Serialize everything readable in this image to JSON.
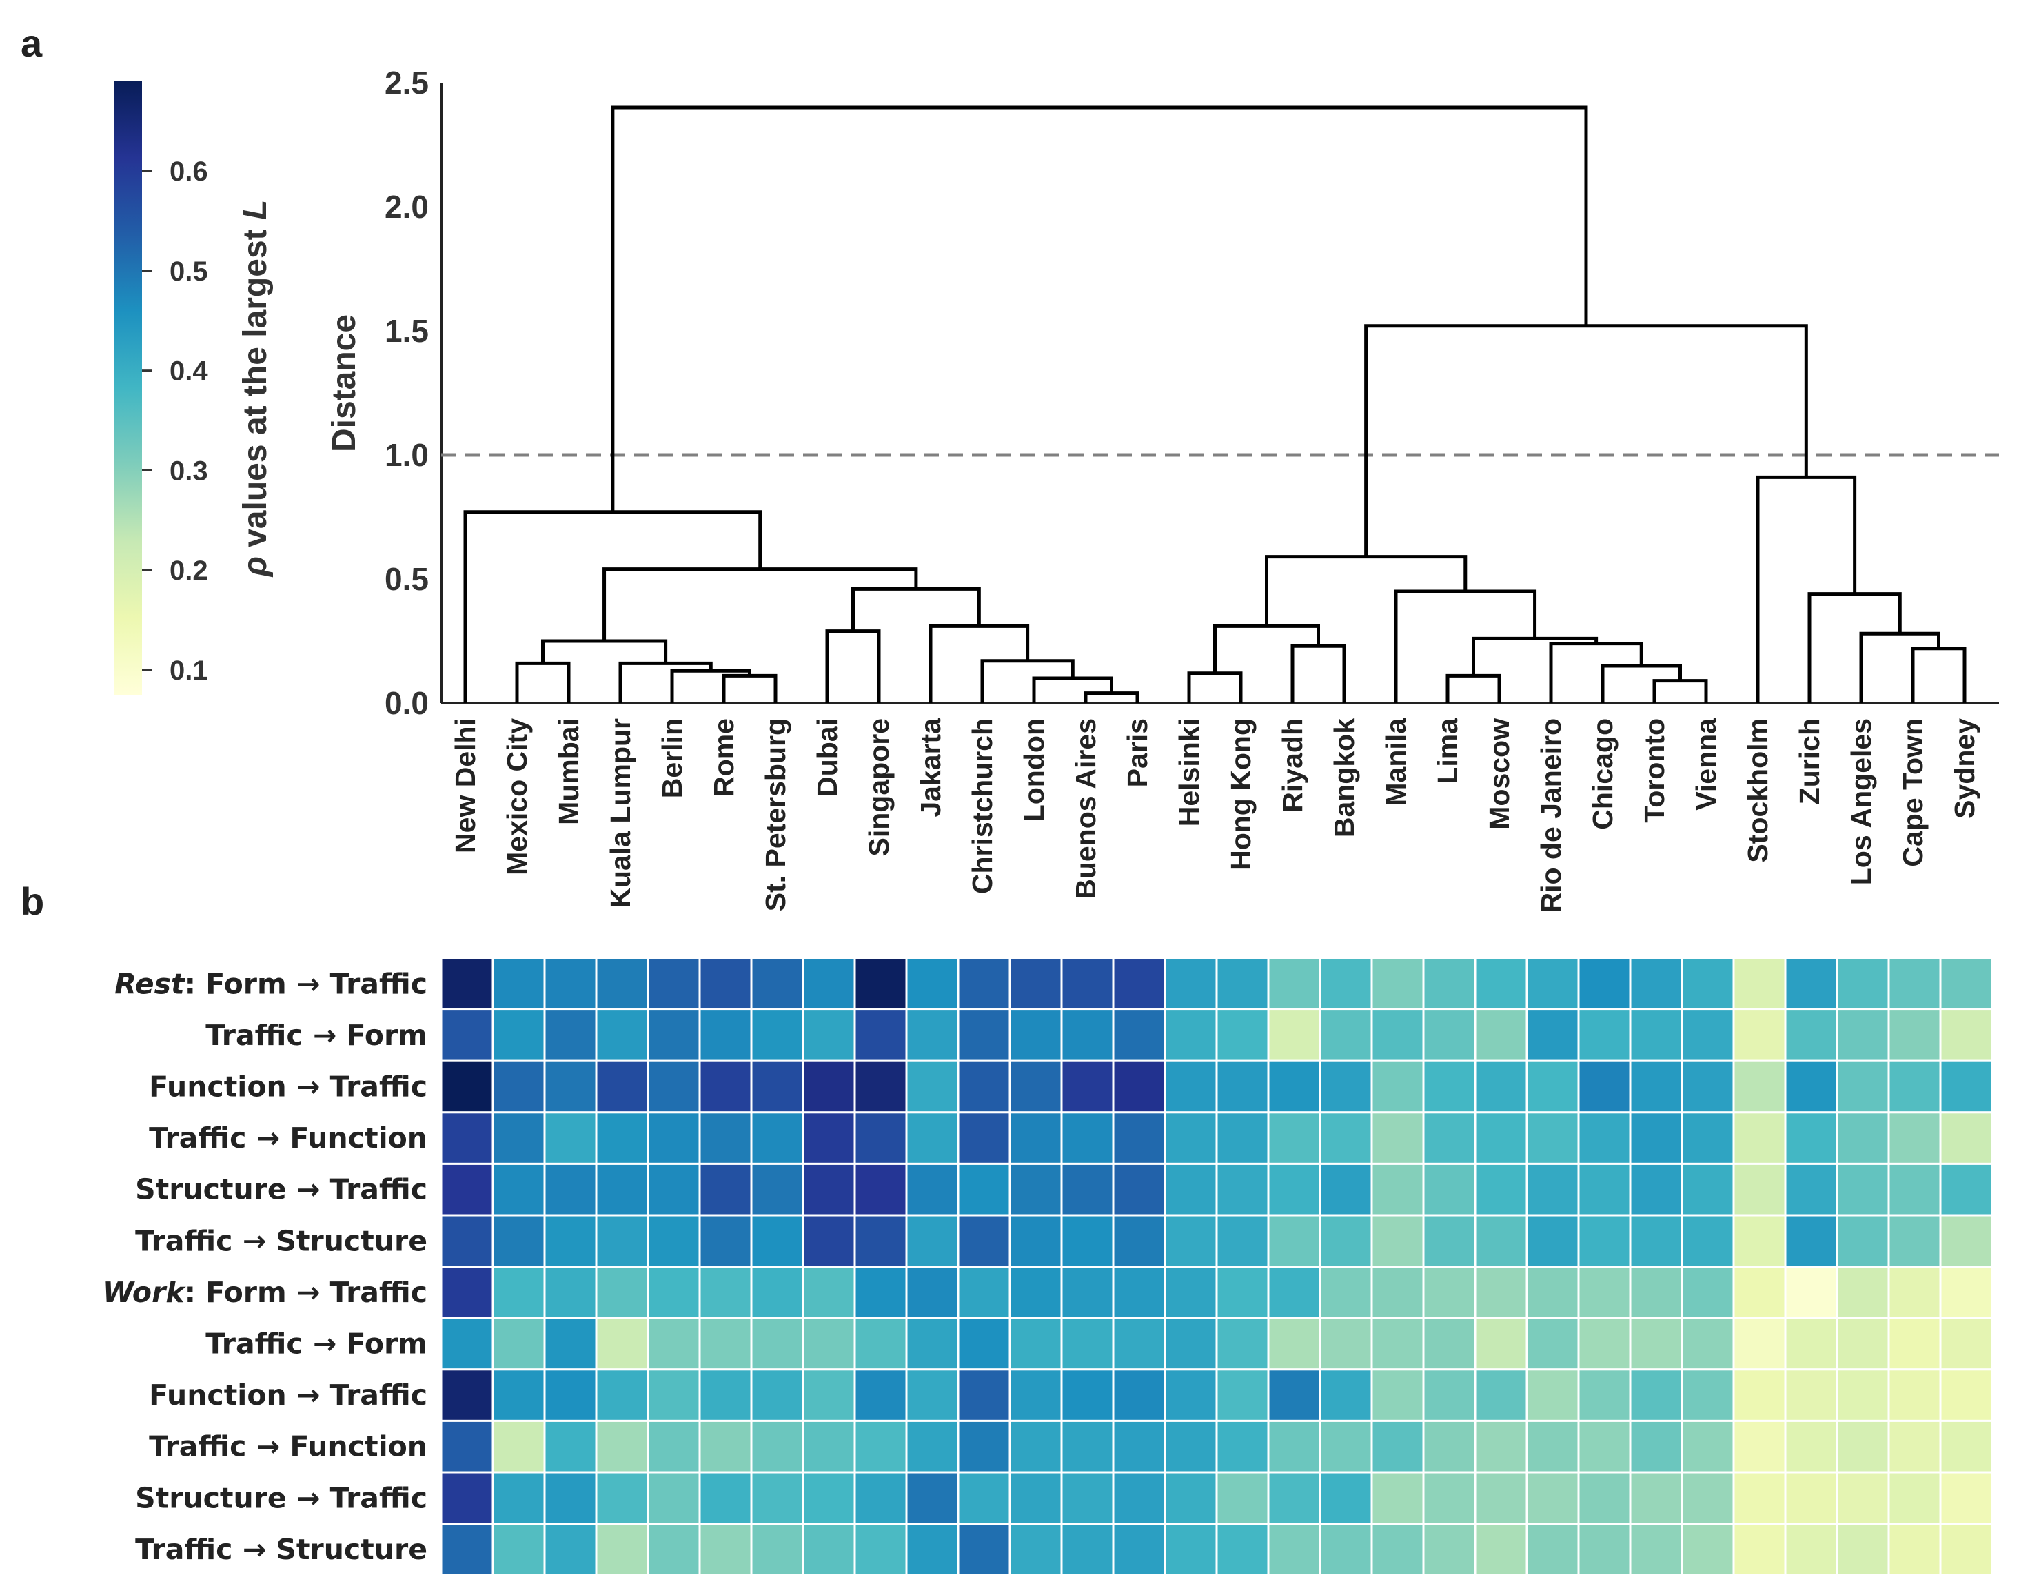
{
  "panel_labels": {
    "a": "a",
    "b": "b"
  },
  "colors": {
    "line": "#000000",
    "threshold": "#808080",
    "axis": "#222222",
    "scale": [
      "#ffffd9",
      "#edf8b1",
      "#c7e9b4",
      "#7fcdbb",
      "#41b6c4",
      "#1d91c0",
      "#225ea8",
      "#253494",
      "#081d58"
    ]
  },
  "colorbar": {
    "label_prefix": "ρ",
    "label_text": " values at the largest ",
    "label_var": "L",
    "ticks": [
      "0.1",
      "0.2",
      "0.3",
      "0.4",
      "0.5",
      "0.6"
    ],
    "tick_values": [
      0.1,
      0.2,
      0.3,
      0.4,
      0.5,
      0.6
    ],
    "range": [
      0.075,
      0.69
    ]
  },
  "chart_data": [
    {
      "type": "dendrogram",
      "ylabel": "Distance",
      "ylim": [
        0,
        2.5
      ],
      "yticks": [
        "0.0",
        "0.5",
        "1.0",
        "1.5",
        "2.0",
        "2.5"
      ],
      "threshold": 1.0,
      "leaves": [
        "New Delhi",
        "Mexico City",
        "Mumbai",
        "Kuala Lumpur",
        "Berlin",
        "Rome",
        "St. Petersburg",
        "Dubai",
        "Singapore",
        "Jakarta",
        "Christchurch",
        "London",
        "Buenos Aires",
        "Paris",
        "Helsinki",
        "Hong Kong",
        "Riyadh",
        "Bangkok",
        "Manila",
        "Lima",
        "Moscow",
        "Rio de Janeiro",
        "Chicago",
        "Toronto",
        "Vienna",
        "Stockholm",
        "Zurich",
        "Los Angeles",
        "Cape Town",
        "Sydney"
      ],
      "merges": [
        {
          "a": "L12",
          "b": "L13",
          "h": 0.04
        },
        {
          "a": "L23",
          "b": "L24",
          "h": 0.09
        },
        {
          "a": "L5",
          "b": "L6",
          "h": 0.11
        },
        {
          "a": "L19",
          "b": "L20",
          "h": 0.11
        },
        {
          "a": "L14",
          "b": "L15",
          "h": 0.12
        },
        {
          "a": "L11",
          "b": "N0",
          "h": 0.1
        },
        {
          "a": "L4",
          "b": "N2",
          "h": 0.13
        },
        {
          "a": "L22",
          "b": "N1",
          "h": 0.15
        },
        {
          "a": "L1",
          "b": "L2",
          "h": 0.16
        },
        {
          "a": "L3",
          "b": "N6",
          "h": 0.16
        },
        {
          "a": "L10",
          "b": "N5",
          "h": 0.17
        },
        {
          "a": "L28",
          "b": "L29",
          "h": 0.22
        },
        {
          "a": "L16",
          "b": "L17",
          "h": 0.23
        },
        {
          "a": "L21",
          "b": "N7",
          "h": 0.24
        },
        {
          "a": "N8",
          "b": "N9",
          "h": 0.25
        },
        {
          "a": "L27",
          "b": "N11",
          "h": 0.28
        },
        {
          "a": "L7",
          "b": "L8",
          "h": 0.29
        },
        {
          "a": "L9",
          "b": "N10",
          "h": 0.31
        },
        {
          "a": "N4",
          "b": "N12",
          "h": 0.31
        },
        {
          "a": "N3",
          "b": "N13",
          "h": 0.26
        },
        {
          "a": "L18",
          "b": "N19",
          "h": 0.45
        },
        {
          "a": "L26",
          "b": "N15",
          "h": 0.44
        },
        {
          "a": "N16",
          "b": "N17",
          "h": 0.46
        },
        {
          "a": "N14",
          "b": "N22",
          "h": 0.54
        },
        {
          "a": "N18",
          "b": "N20",
          "h": 0.59
        },
        {
          "a": "L25",
          "b": "N21",
          "h": 0.91
        },
        {
          "a": "L0",
          "b": "N23",
          "h": 0.77
        },
        {
          "a": "N24",
          "b": "N25",
          "h": 1.52
        },
        {
          "a": "N26",
          "b": "N27",
          "h": 2.4
        }
      ]
    },
    {
      "type": "heatmap",
      "vmin": 0.075,
      "vmax": 0.69,
      "columns": [
        "New Delhi",
        "Mexico City",
        "Mumbai",
        "Kuala Lumpur",
        "Berlin",
        "Rome",
        "St. Petersburg",
        "Dubai",
        "Singapore",
        "Jakarta",
        "Christchurch",
        "London",
        "Buenos Aires",
        "Paris",
        "Helsinki",
        "Hong Kong",
        "Riyadh",
        "Bangkok",
        "Manila",
        "Lima",
        "Moscow",
        "Rio de Janeiro",
        "Chicago",
        "Toronto",
        "Vienna",
        "Stockholm",
        "Zurich",
        "Los Angeles",
        "Cape Town",
        "Sydney"
      ],
      "rows": [
        {
          "group": "Rest",
          "sep": ": ",
          "label": "Form → Traffic",
          "values": [
            0.67,
            0.47,
            0.48,
            0.49,
            0.53,
            0.55,
            0.52,
            0.47,
            0.68,
            0.46,
            0.53,
            0.55,
            0.56,
            0.58,
            0.43,
            0.42,
            0.33,
            0.37,
            0.31,
            0.35,
            0.38,
            0.41,
            0.46,
            0.43,
            0.4,
            0.19,
            0.43,
            0.36,
            0.34,
            0.33
          ]
        },
        {
          "group": "",
          "sep": "",
          "label": "Traffic → Form",
          "values": [
            0.55,
            0.45,
            0.5,
            0.44,
            0.5,
            0.47,
            0.45,
            0.42,
            0.57,
            0.43,
            0.52,
            0.47,
            0.47,
            0.51,
            0.4,
            0.38,
            0.2,
            0.35,
            0.36,
            0.34,
            0.3,
            0.44,
            0.39,
            0.4,
            0.41,
            0.17,
            0.36,
            0.33,
            0.3,
            0.21
          ]
        },
        {
          "group": "",
          "sep": "",
          "label": "Function → Traffic",
          "values": [
            0.69,
            0.52,
            0.5,
            0.57,
            0.51,
            0.59,
            0.57,
            0.63,
            0.65,
            0.41,
            0.54,
            0.52,
            0.6,
            0.62,
            0.44,
            0.44,
            0.45,
            0.43,
            0.32,
            0.38,
            0.4,
            0.38,
            0.48,
            0.44,
            0.43,
            0.24,
            0.45,
            0.34,
            0.36,
            0.4
          ]
        },
        {
          "group": "",
          "sep": "",
          "label": "Traffic → Function",
          "values": [
            0.59,
            0.49,
            0.41,
            0.45,
            0.47,
            0.49,
            0.47,
            0.6,
            0.57,
            0.42,
            0.55,
            0.48,
            0.47,
            0.52,
            0.42,
            0.42,
            0.36,
            0.37,
            0.28,
            0.37,
            0.38,
            0.37,
            0.41,
            0.44,
            0.42,
            0.2,
            0.38,
            0.33,
            0.29,
            0.22
          ]
        },
        {
          "group": "",
          "sep": "",
          "label": "Structure → Traffic",
          "values": [
            0.61,
            0.47,
            0.48,
            0.47,
            0.47,
            0.56,
            0.5,
            0.6,
            0.61,
            0.48,
            0.46,
            0.49,
            0.51,
            0.53,
            0.42,
            0.41,
            0.39,
            0.43,
            0.3,
            0.34,
            0.38,
            0.41,
            0.4,
            0.43,
            0.4,
            0.21,
            0.41,
            0.34,
            0.33,
            0.37
          ]
        },
        {
          "group": "",
          "sep": "",
          "label": "Traffic → Structure",
          "values": [
            0.56,
            0.49,
            0.45,
            0.43,
            0.45,
            0.5,
            0.46,
            0.58,
            0.56,
            0.43,
            0.53,
            0.47,
            0.46,
            0.49,
            0.41,
            0.41,
            0.33,
            0.36,
            0.28,
            0.35,
            0.35,
            0.42,
            0.39,
            0.4,
            0.4,
            0.18,
            0.44,
            0.34,
            0.32,
            0.25
          ]
        },
        {
          "group": "Work",
          "sep": ": ",
          "label": "Form → Traffic",
          "values": [
            0.6,
            0.38,
            0.4,
            0.35,
            0.38,
            0.37,
            0.39,
            0.36,
            0.46,
            0.47,
            0.42,
            0.45,
            0.44,
            0.44,
            0.42,
            0.38,
            0.39,
            0.31,
            0.3,
            0.29,
            0.28,
            0.3,
            0.29,
            0.3,
            0.32,
            0.15,
            0.09,
            0.21,
            0.17,
            0.13
          ]
        },
        {
          "group": "",
          "sep": "",
          "label": "Traffic → Form",
          "values": [
            0.45,
            0.33,
            0.45,
            0.22,
            0.31,
            0.31,
            0.32,
            0.32,
            0.36,
            0.42,
            0.46,
            0.4,
            0.4,
            0.41,
            0.42,
            0.37,
            0.26,
            0.28,
            0.29,
            0.3,
            0.23,
            0.31,
            0.27,
            0.27,
            0.29,
            0.12,
            0.18,
            0.19,
            0.15,
            0.17
          ]
        },
        {
          "group": "",
          "sep": "",
          "label": "Function → Traffic",
          "values": [
            0.66,
            0.45,
            0.46,
            0.4,
            0.36,
            0.4,
            0.4,
            0.36,
            0.47,
            0.41,
            0.53,
            0.44,
            0.46,
            0.47,
            0.43,
            0.37,
            0.49,
            0.41,
            0.29,
            0.32,
            0.34,
            0.27,
            0.31,
            0.35,
            0.32,
            0.15,
            0.17,
            0.18,
            0.16,
            0.15
          ]
        },
        {
          "group": "",
          "sep": "",
          "label": "Traffic → Function",
          "values": [
            0.54,
            0.22,
            0.39,
            0.27,
            0.33,
            0.3,
            0.33,
            0.35,
            0.37,
            0.42,
            0.49,
            0.42,
            0.42,
            0.43,
            0.42,
            0.39,
            0.33,
            0.32,
            0.35,
            0.3,
            0.28,
            0.3,
            0.29,
            0.33,
            0.29,
            0.14,
            0.18,
            0.2,
            0.17,
            0.18
          ]
        },
        {
          "group": "",
          "sep": "",
          "label": "Structure → Traffic",
          "values": [
            0.6,
            0.42,
            0.44,
            0.37,
            0.33,
            0.39,
            0.37,
            0.38,
            0.42,
            0.5,
            0.41,
            0.42,
            0.41,
            0.43,
            0.4,
            0.31,
            0.37,
            0.39,
            0.27,
            0.29,
            0.28,
            0.28,
            0.3,
            0.28,
            0.28,
            0.15,
            0.16,
            0.17,
            0.18,
            0.14
          ]
        },
        {
          "group": "",
          "sep": "",
          "label": "Traffic → Structure",
          "values": [
            0.52,
            0.36,
            0.41,
            0.26,
            0.32,
            0.29,
            0.32,
            0.35,
            0.37,
            0.44,
            0.51,
            0.41,
            0.42,
            0.43,
            0.39,
            0.38,
            0.31,
            0.32,
            0.31,
            0.29,
            0.26,
            0.3,
            0.3,
            0.29,
            0.27,
            0.15,
            0.18,
            0.2,
            0.16,
            0.16
          ]
        }
      ]
    }
  ]
}
